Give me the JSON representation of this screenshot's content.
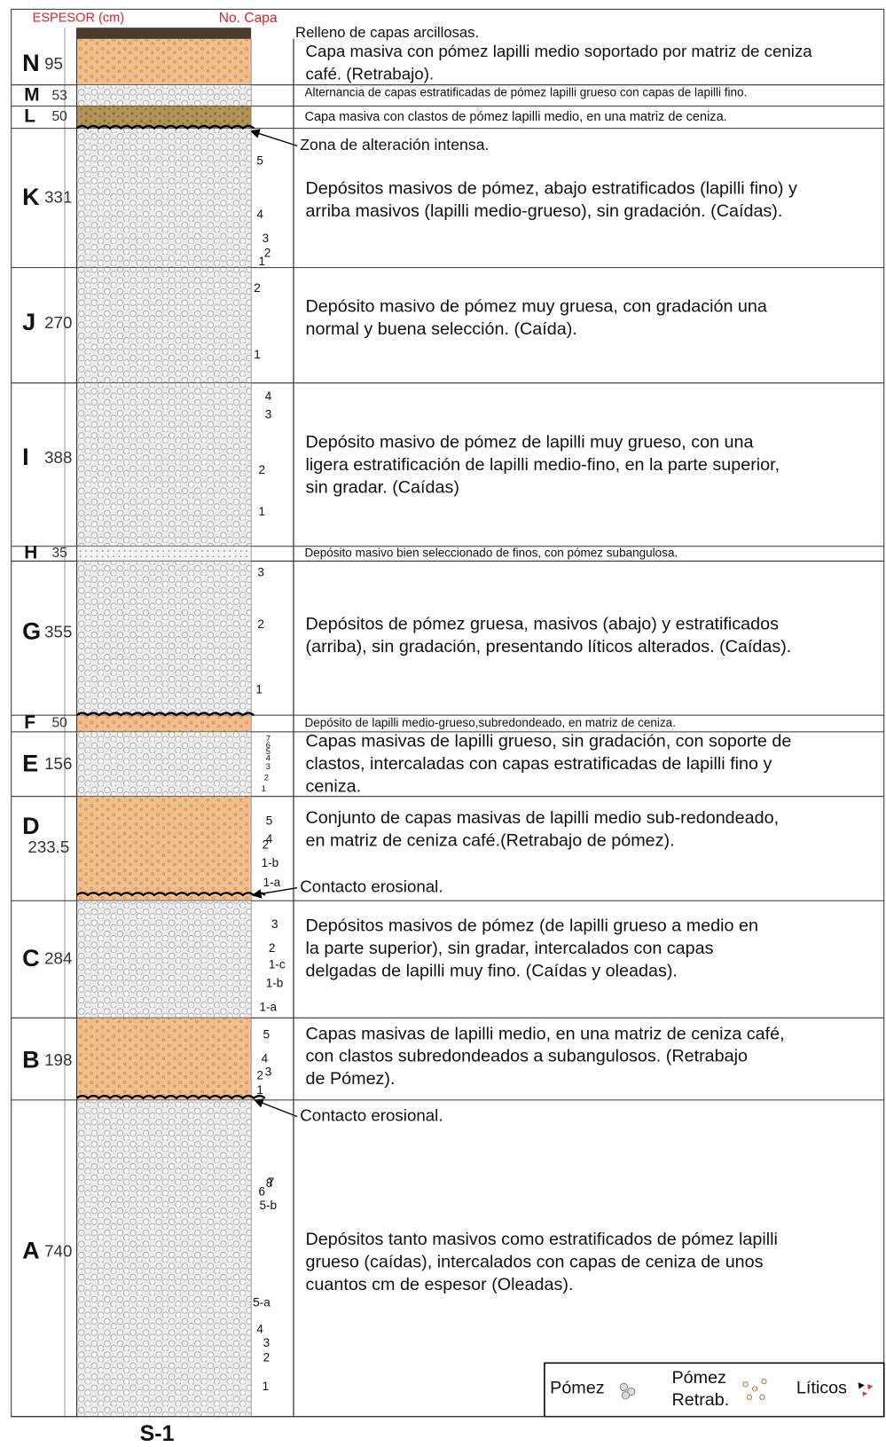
{
  "header": {
    "thickness_label": "ESPESOR (cm)",
    "layer_label": "No. Capa"
  },
  "top_layer": "Relleno de capas arcillosas.",
  "units": [
    {
      "letter": "N",
      "thickness": 95,
      "layers": [],
      "description": [
        "Capa masiva con pómez lapilli medio soportado por matriz de ceniza",
        "café. (Retrabajo)."
      ]
    },
    {
      "letter": "M",
      "thickness": 53,
      "layers": [],
      "description": [
        "Alternancia de capas estratificadas de pómez lapilli grueso con capas de lapilli fino."
      ]
    },
    {
      "letter": "L",
      "thickness": 50,
      "layers": [],
      "description": [
        "Capa masiva con clastos de pómez lapilli medio, en una matriz de ceniza."
      ]
    },
    {
      "letter": "K",
      "thickness": 331,
      "layers": [
        "5",
        "4",
        "3",
        "2",
        "1"
      ],
      "description": [
        "Depósitos masivos de pómez, abajo estratificados (lapilli fino) y",
        "arriba masivos (lapilli medio-grueso), sin gradación. (Caídas)."
      ]
    },
    {
      "letter": "J",
      "thickness": 270,
      "layers": [
        "2",
        "1"
      ],
      "description": [
        "Depósito masivo de pómez muy gruesa, con gradación una",
        "normal y buena selección. (Caída)."
      ]
    },
    {
      "letter": "I",
      "thickness": 388,
      "layers": [
        "4",
        "3",
        "2",
        "1"
      ],
      "description": [
        "Depósito masivo de pómez de lapilli muy grueso, con una",
        "ligera estratificación de lapilli medio-fino, en la parte superior,",
        "sin gradar. (Caídas)"
      ]
    },
    {
      "letter": "H",
      "thickness": 35,
      "layers": [],
      "description": [
        "Depósito masivo bien seleccionado de finos, con pómez subangulosa."
      ]
    },
    {
      "letter": "G",
      "thickness": 355,
      "layers": [
        "3",
        "2",
        "1"
      ],
      "description": [
        "Depósitos de pómez gruesa, masivos (abajo) y estratificados",
        "(arriba), sin gradación, presentando líticos alterados. (Caídas)."
      ]
    },
    {
      "letter": "F",
      "thickness": 50,
      "layers": [],
      "description": [
        "Depósito de lapilli medio-grueso,subredondeado, en matriz de ceniza."
      ]
    },
    {
      "letter": "E",
      "thickness": 156,
      "layers": [
        "7",
        "6",
        "5",
        "4",
        "3",
        "2",
        "1"
      ],
      "description": [
        "Capas masivas de lapilli grueso, sin gradación, con soporte de",
        "clastos, intercaladas con capas estratificadas de lapilli fino y",
        "ceniza."
      ]
    },
    {
      "letter": "D",
      "thickness": 233.5,
      "layers": [
        "5",
        "4",
        "2",
        "1-b",
        "1-a"
      ],
      "description": [
        "Conjunto de capas masivas de lapilli medio sub-redondeado,",
        "en matriz de ceniza café.(Retrabajo de pómez)."
      ]
    },
    {
      "letter": "C",
      "thickness": 284,
      "layers": [
        "3",
        "2",
        "1-c",
        "1-b",
        "1-a"
      ],
      "description": [
        "Depósitos masivos de pómez  (de lapilli grueso a medio en",
        "la parte superior), sin gradar, intercalados con capas",
        "delgadas de lapilli muy fino. (Caídas y oleadas)."
      ]
    },
    {
      "letter": "B",
      "thickness": 198,
      "layers": [
        "5",
        "4",
        "3",
        "2",
        "1"
      ],
      "description": [
        "Capas masivas  de lapilli medio, en una matriz de ceniza café,",
        "con clastos subredondeados a subangulosos. (Retrabajo",
        "de Pómez)."
      ]
    },
    {
      "letter": "A",
      "thickness": 740,
      "layers": [
        "8",
        "7",
        "6",
        "5-b",
        "5-a",
        "4",
        "3",
        "2",
        "1"
      ],
      "description": [
        "Depósitos tanto masivos como estratificados de pómez lapilli",
        "grueso (caídas), intercalados con capas de ceniza  de unos",
        "cuantos cm de espesor (Oleadas)."
      ]
    }
  ],
  "annotations": [
    "Zona de alteración intensa.",
    "Contacto erosional.",
    "Contacto erosional."
  ],
  "legend": {
    "items": [
      [
        "Pómez"
      ],
      [
        "Pómez",
        "Retrab."
      ],
      [
        "Líticos"
      ]
    ]
  },
  "section_label": "S-1"
}
